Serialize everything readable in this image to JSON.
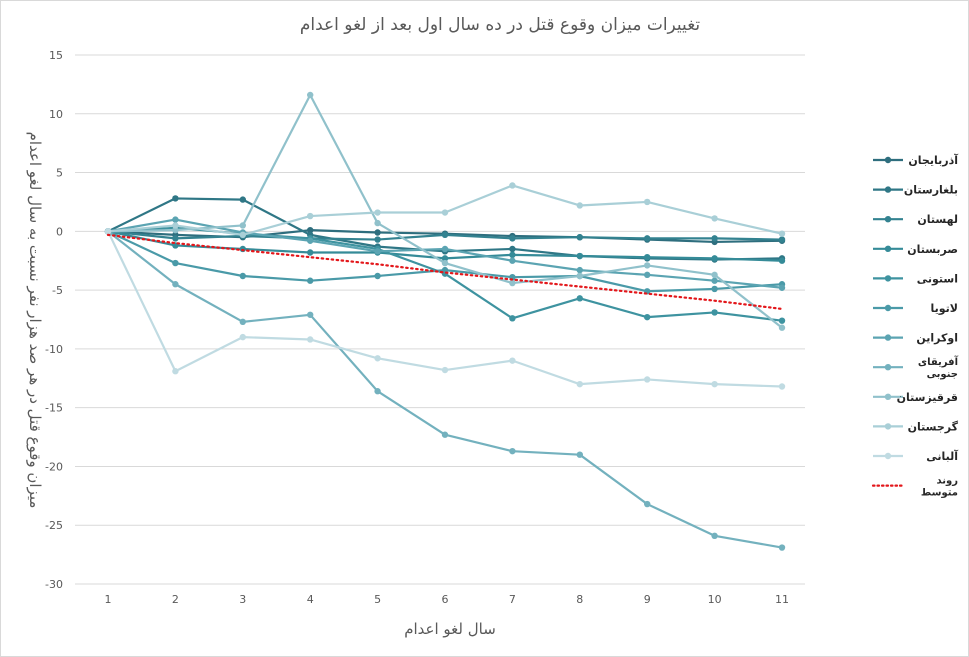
{
  "chart_data": {
    "type": "line",
    "title": "تغییرات میزان وقوع قتل در ده سال اول بعد از لغو اعدام",
    "xlabel": "سال لغو اعدام",
    "ylabel": "میزان وقوع قتل در هر صد هزار نفر نسبت به سال لغو اعدام",
    "x": [
      1,
      2,
      3,
      4,
      5,
      6,
      7,
      8,
      9,
      10,
      11
    ],
    "x_tick_labels": [
      "1",
      "2",
      "3",
      "4",
      "5",
      "6",
      "7",
      "8",
      "9",
      "10",
      "11"
    ],
    "ylim": [
      -30,
      15
    ],
    "y_ticks": [
      15,
      10,
      5,
      0,
      -5,
      -10,
      -15,
      -20,
      -25,
      -30
    ],
    "y_tick_labels": [
      "15",
      "10",
      "5",
      "0",
      "-5",
      "-10",
      "-15",
      "-20",
      "-25",
      "-30"
    ],
    "grid": true,
    "legend_position": "right",
    "series": [
      {
        "name": "آذربایجان",
        "color": "#2e6e7e",
        "values": [
          0,
          -0.3,
          -0.5,
          0.1,
          -0.1,
          -0.2,
          -0.4,
          -0.5,
          -0.7,
          -0.9,
          -0.8
        ]
      },
      {
        "name": "بلغارستان",
        "color": "#2f7786",
        "values": [
          0,
          2.8,
          2.7,
          -0.3,
          -1.3,
          -1.7,
          -1.5,
          -2.1,
          -2.3,
          -2.4,
          -2.3
        ]
      },
      {
        "name": "لهستان",
        "color": "#338290",
        "values": [
          0,
          -0.6,
          -0.4,
          -0.6,
          -0.7,
          -0.3,
          -0.6,
          -0.5,
          -0.6,
          -0.6,
          -0.7
        ]
      },
      {
        "name": "صربستان",
        "color": "#358b98",
        "values": [
          0,
          -1.2,
          -1.5,
          -1.8,
          -1.8,
          -2.3,
          -2.0,
          -2.1,
          -2.2,
          -2.3,
          -2.5
        ]
      },
      {
        "name": "استونی",
        "color": "#3e93a0",
        "values": [
          0,
          0.3,
          -0.2,
          -0.6,
          -1.5,
          -3.6,
          -7.4,
          -5.7,
          -7.3,
          -6.9,
          -7.6
        ]
      },
      {
        "name": "لاتویا",
        "color": "#4a9aa8",
        "values": [
          0,
          -2.7,
          -3.8,
          -4.2,
          -3.8,
          -3.3,
          -3.9,
          -3.8,
          -5.1,
          -4.9,
          -4.5
        ]
      },
      {
        "name": "اوکراین",
        "color": "#5ba4b2",
        "values": [
          0,
          1.0,
          -0.1,
          -0.8,
          -1.7,
          -1.5,
          -2.5,
          -3.3,
          -3.7,
          -4.2,
          -4.8
        ]
      },
      {
        "name": "آفریقای جنوبی",
        "color": "#73b1be",
        "values": [
          0,
          -4.5,
          -7.7,
          -7.1,
          -13.6,
          -17.3,
          -18.7,
          -19.0,
          -23.2,
          -25.9,
          -26.9
        ]
      },
      {
        "name": "قرقیزستان",
        "color": "#90c1cb",
        "values": [
          0,
          0.1,
          0.5,
          11.6,
          0.7,
          -2.7,
          -4.4,
          -3.8,
          -2.9,
          -3.7,
          -8.2
        ]
      },
      {
        "name": "گرجستان",
        "color": "#a9cfd7",
        "values": [
          0,
          0.5,
          -0.3,
          1.3,
          1.6,
          1.6,
          3.9,
          2.2,
          2.5,
          1.1,
          -0.2
        ]
      },
      {
        "name": "آلبانی",
        "color": "#c0dbe2",
        "values": [
          0,
          -11.9,
          -9.0,
          -9.2,
          -10.8,
          -11.8,
          -11.0,
          -13.0,
          -12.6,
          -13.0,
          -13.2
        ]
      }
    ],
    "trendline": {
      "name": "روند متوسط",
      "color": "#e3171b",
      "style": "dotted",
      "values": [
        -0.3,
        -1.0,
        -1.6,
        -2.2,
        -2.8,
        -3.5,
        -4.1,
        -4.7,
        -5.3,
        -5.9,
        -6.6
      ]
    }
  }
}
